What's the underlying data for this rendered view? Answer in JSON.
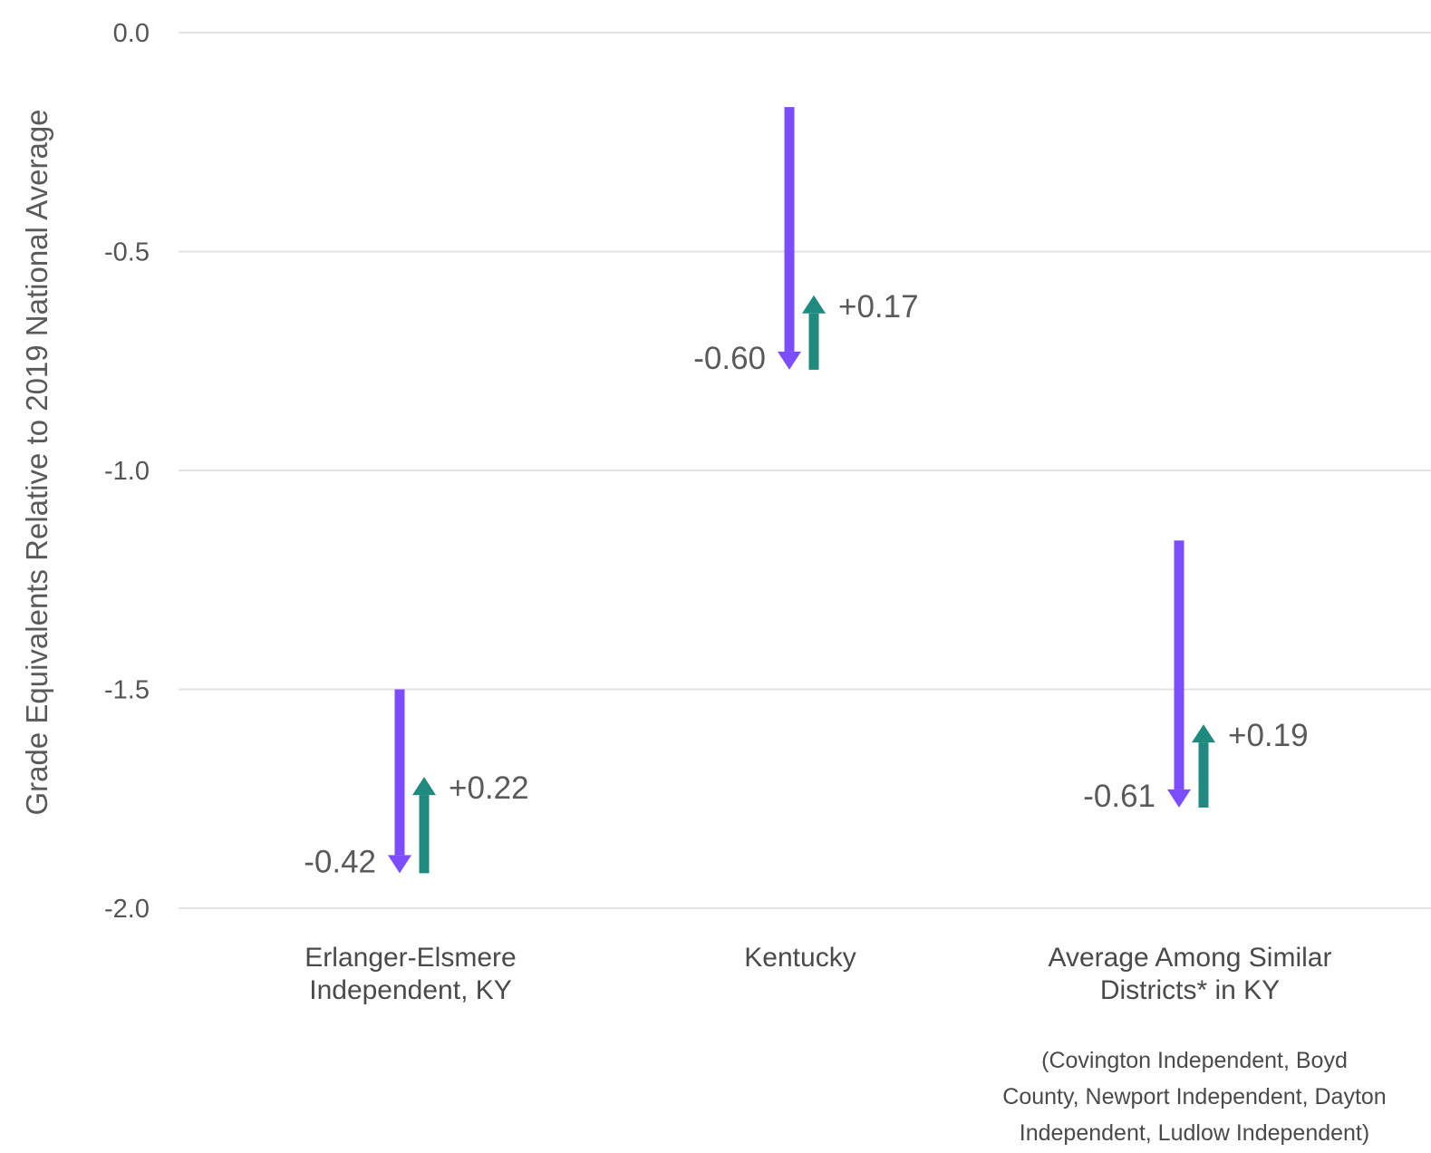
{
  "chart_data": {
    "type": "arrow",
    "title": "",
    "ylabel": "Grade Equivalents Relative to 2019 National Average",
    "xlabel": "",
    "ylim": [
      -2.0,
      0.0
    ],
    "yticks": [
      "0.0",
      "-0.5",
      "-1.0",
      "-1.5",
      "-2.0"
    ],
    "grid": true,
    "colors": {
      "decline": "#7c4dff",
      "recovery": "#1f8a80",
      "grid": "#e3e3e3"
    },
    "categories": [
      {
        "label_lines": [
          "Erlanger-Elsmere",
          "Independent, KY"
        ],
        "note_lines": []
      },
      {
        "label_lines": [
          "Kentucky"
        ],
        "note_lines": []
      },
      {
        "label_lines": [
          "Average Among Similar",
          "Districts* in KY"
        ],
        "note_lines": [
          "(Covington Independent, Boyd",
          "County, Newport Independent, Dayton",
          "Independent, Ludlow Independent)"
        ]
      }
    ],
    "series": [
      {
        "values": [
          {
            "start": -1.5,
            "end": -1.92,
            "label": "-0.42"
          },
          {
            "start": -0.17,
            "end": -0.77,
            "label": "-0.60"
          },
          {
            "start": -1.16,
            "end": -1.77,
            "label": "-0.61"
          }
        ]
      },
      {
        "values": [
          {
            "start": -1.92,
            "end": -1.7,
            "label": "+0.22"
          },
          {
            "start": -0.77,
            "end": -0.6,
            "label": "+0.17"
          },
          {
            "start": -1.77,
            "end": -1.58,
            "label": "+0.19"
          }
        ]
      }
    ]
  }
}
